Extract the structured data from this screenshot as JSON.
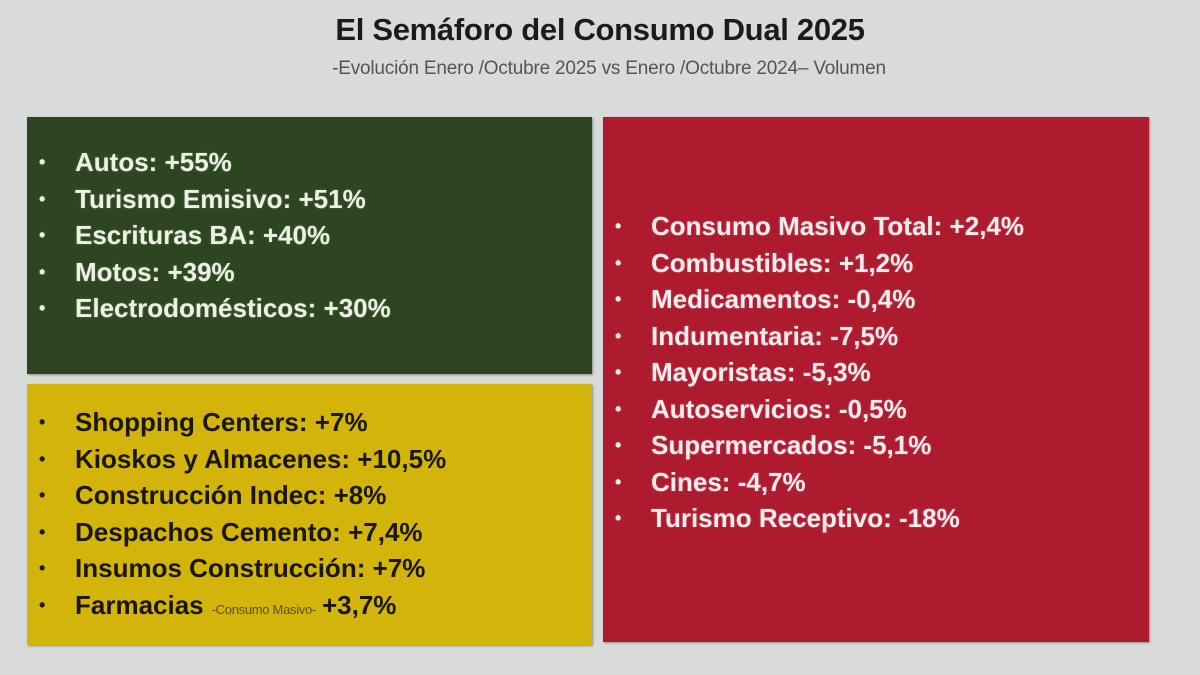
{
  "header": {
    "title": "El Semáforo del Consumo Dual 2025",
    "subtitle": "-Evolución Enero /Octubre 2025 vs Enero /Octubre 2024– Volumen"
  },
  "colors": {
    "background": "#d9dbdb",
    "green_panel": "#2d4520",
    "yellow_panel": "#d3b40b",
    "red_panel": "#ae1a2e"
  },
  "bullet_glyph": "•",
  "green_panel": {
    "items": [
      {
        "label": "Autos:",
        "value": "+55%"
      },
      {
        "label": "Turismo Emisivo:",
        "value": "+51%"
      },
      {
        "label": "Escrituras BA:",
        "value": "+40%"
      },
      {
        "label": "Motos:",
        "value": "+39%"
      },
      {
        "label": "Electrodomésticos:",
        "value": "+30%"
      }
    ]
  },
  "yellow_panel": {
    "items": [
      {
        "label": "Shopping Centers:",
        "value": "+7%"
      },
      {
        "label": "Kioskos y Almacenes:",
        "value": "+10,5%"
      },
      {
        "label": "Construcción Indec:",
        "value": "+8%"
      },
      {
        "label": "Despachos Cemento:",
        "value": "+7,4%"
      },
      {
        "label": "Insumos Construcción:",
        "value": "+7%"
      },
      {
        "label": "Farmacias",
        "note": "-Consumo Masivo-",
        "value": "+3,7%"
      }
    ]
  },
  "red_panel": {
    "items": [
      {
        "label": "Consumo Masivo Total:",
        "value": "+2,4%"
      },
      {
        "label": "Combustibles:",
        "value": "+1,2%"
      },
      {
        "label": "Medicamentos:",
        "value": "-0,4%"
      },
      {
        "label": "Indumentaria:",
        "value": "-7,5%"
      },
      {
        "label": "Mayoristas:",
        "value": "-5,3%"
      },
      {
        "label": "Autoservicios:",
        "value": "-0,5%"
      },
      {
        "label": "Supermercados:",
        "value": "-5,1%"
      },
      {
        "label": "Cines:",
        "value": "-4,7%"
      },
      {
        "label": "Turismo Receptivo:",
        "value": "-18%"
      }
    ]
  }
}
